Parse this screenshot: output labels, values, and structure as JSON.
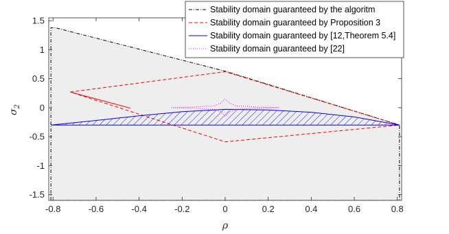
{
  "chart_data": {
    "type": "line",
    "xlabel": "ρ",
    "ylabel": "σ",
    "ylabel_sub": "2",
    "xlim": [
      -0.82,
      0.82
    ],
    "ylim": [
      -1.6,
      1.55
    ],
    "xticks": [
      -0.8,
      -0.6,
      -0.4,
      -0.2,
      0,
      0.2,
      0.4,
      0.6,
      0.8
    ],
    "xtick_labels": [
      "-0.8",
      "-0.6",
      "-0.4",
      "-0.2",
      "0",
      "0.2",
      "0.4",
      "0.6",
      "0.8"
    ],
    "yticks": [
      1.5,
      1,
      0.5,
      0,
      -0.5,
      -1,
      -1.5
    ],
    "ytick_labels": [
      "1.5",
      "1",
      "0.5",
      "0",
      "-0.5",
      "-1",
      "-1.5"
    ],
    "legend_position": "top-right",
    "series": [
      {
        "name": "Stability domain guaranteed by the algoritm",
        "color": "#000000",
        "style": "dash-dot",
        "fill": "#eeeeee",
        "x": [
          -0.81,
          -0.81,
          -0.79,
          0.0,
          0.81,
          0.81,
          -0.81
        ],
        "y": [
          -1.6,
          1.38,
          1.38,
          0.63,
          -0.3,
          -1.6,
          -1.6
        ]
      },
      {
        "name": "Stability domain guaranteed by Proposition 3",
        "color": "#ff0000",
        "style": "dashed",
        "x": [
          -0.72,
          0.0,
          0.81,
          0.0,
          -0.72,
          -0.44,
          -0.72
        ],
        "y": [
          0.27,
          0.62,
          -0.3,
          -0.59,
          0.27,
          -0.01,
          0.27
        ]
      },
      {
        "name": "Stability domain guaranteed by [12,Theorem 5.4]",
        "color": "#0000ff",
        "style": "solid",
        "hatched": true,
        "x": [
          -0.81,
          -0.6,
          -0.4,
          -0.2,
          0.0,
          0.2,
          0.4,
          0.6,
          0.81,
          0.81,
          -0.81
        ],
        "y": [
          -0.3,
          -0.22,
          -0.14,
          -0.07,
          -0.03,
          -0.04,
          -0.08,
          -0.16,
          -0.3,
          -0.3,
          -0.3
        ]
      },
      {
        "name": "Stability domain guaranteed by [22]",
        "color": "#ff00ff",
        "style": "dotted",
        "x": [
          -0.25,
          -0.15,
          -0.05,
          -0.02,
          0.0,
          0.02,
          0.05,
          0.15,
          0.25,
          0.15,
          0.05,
          0.02,
          0.0,
          -0.02,
          -0.05,
          -0.15,
          -0.25
        ],
        "y": [
          0.0,
          0.01,
          0.03,
          0.08,
          0.15,
          0.08,
          0.03,
          0.01,
          0.0,
          -0.01,
          -0.03,
          -0.07,
          -0.15,
          -0.07,
          -0.03,
          -0.01,
          0.0
        ]
      }
    ]
  }
}
